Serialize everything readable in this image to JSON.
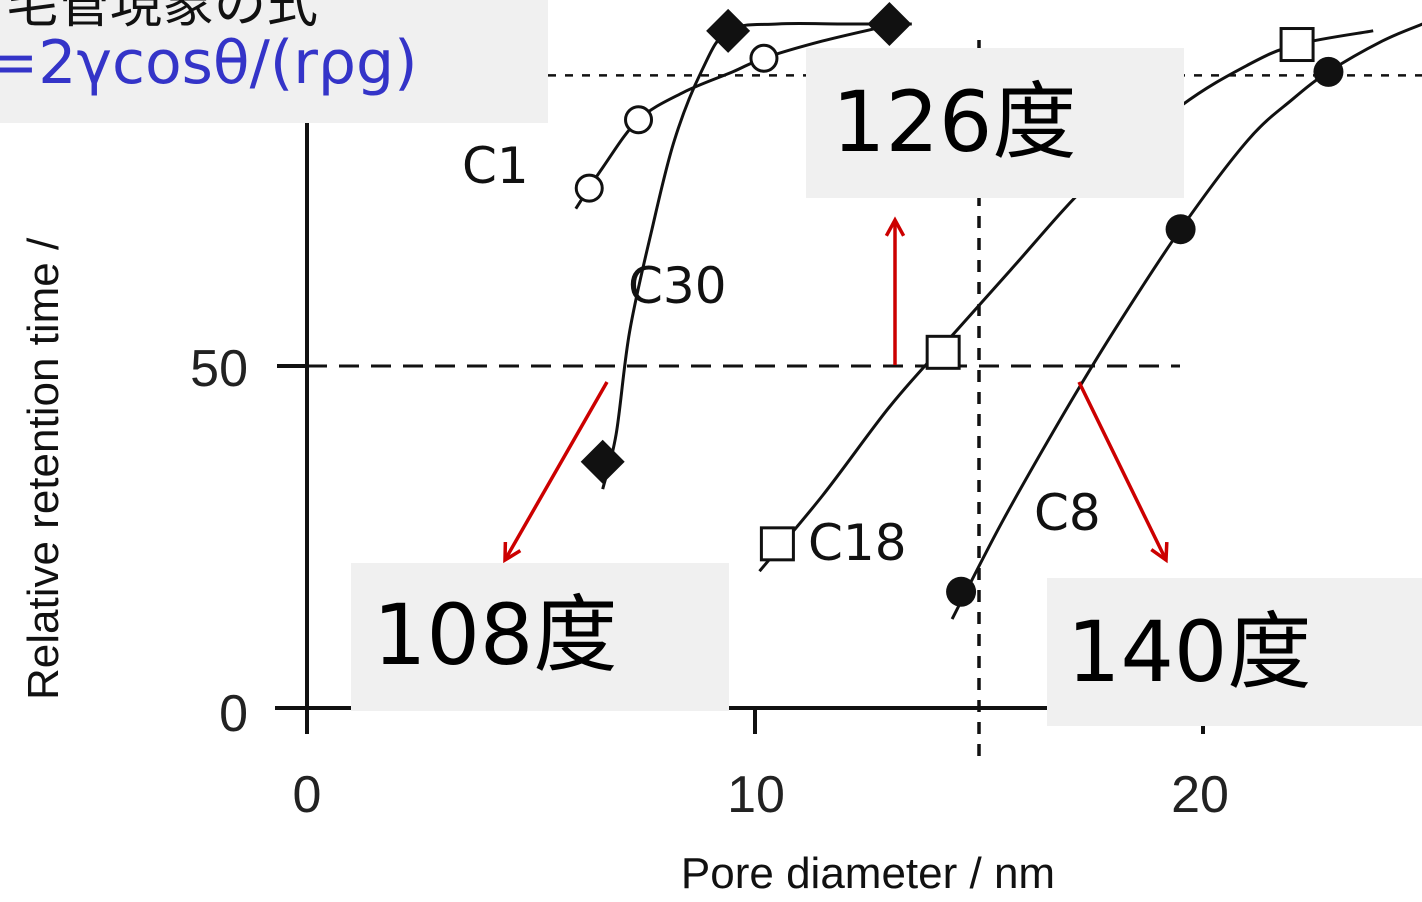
{
  "formula": {
    "top_text": "毛管現象の式",
    "main_text": "=2γcosθ/(rρg)"
  },
  "annotations": {
    "c30_angle": "108度",
    "c18_angle": "126度",
    "c8_angle": "140度"
  },
  "colors": {
    "formula_text": "#3434c8",
    "arrow": "#cc0000",
    "box_fill": "#f0f0f0",
    "axis": "#111111"
  },
  "chart_data": {
    "type": "scatter",
    "xlabel": "Pore diameter / nm",
    "ylabel": "Relative retention time /",
    "x_ticks": [
      "0",
      "10",
      "20"
    ],
    "y_ticks": [
      "0",
      "50"
    ],
    "xlim": [
      0,
      25
    ],
    "ylim": [
      0,
      100
    ],
    "reference_lines": [
      {
        "axis": "y",
        "value": 50,
        "style": "dashed"
      },
      {
        "axis": "y",
        "value": 90,
        "style": "dashed"
      },
      {
        "axis": "x",
        "value": 15,
        "style": "dashed"
      }
    ],
    "series": [
      {
        "name": "C1",
        "marker": "open-circle",
        "points": [
          [
            6.3,
            76
          ],
          [
            7.4,
            86
          ],
          [
            10.2,
            95
          ],
          [
            13.0,
            100
          ]
        ],
        "curve": [
          [
            6.0,
            73
          ],
          [
            6.6,
            79
          ],
          [
            7.4,
            86
          ],
          [
            8.4,
            90
          ],
          [
            9.5,
            93
          ],
          [
            10.2,
            95
          ],
          [
            11.5,
            97.5
          ],
          [
            12.8,
            99.5
          ]
        ]
      },
      {
        "name": "C30",
        "marker": "filled-diamond",
        "points": [
          [
            6.6,
            36
          ],
          [
            9.4,
            99
          ],
          [
            13.0,
            100
          ]
        ],
        "curve": [
          [
            6.6,
            32
          ],
          [
            6.9,
            40
          ],
          [
            7.2,
            55
          ],
          [
            7.7,
            70
          ],
          [
            8.2,
            83
          ],
          [
            8.8,
            93
          ],
          [
            9.4,
            99
          ],
          [
            10.5,
            100
          ],
          [
            12.0,
            100
          ],
          [
            13.5,
            100
          ]
        ]
      },
      {
        "name": "C18",
        "marker": "open-square",
        "points": [
          [
            10.5,
            24
          ],
          [
            14.2,
            52
          ],
          [
            22.1,
            97
          ]
        ],
        "curve": [
          [
            10.1,
            20
          ],
          [
            11.5,
            31
          ],
          [
            13.0,
            44
          ],
          [
            14.2,
            53
          ],
          [
            15.7,
            64
          ],
          [
            17.5,
            77
          ],
          [
            19.5,
            88
          ],
          [
            21.0,
            94
          ],
          [
            22.1,
            97
          ],
          [
            23.8,
            99
          ]
        ]
      },
      {
        "name": "C8",
        "marker": "filled-circle",
        "points": [
          [
            14.6,
            17
          ],
          [
            19.5,
            70
          ],
          [
            22.8,
            93
          ]
        ],
        "curve": [
          [
            14.4,
            13
          ],
          [
            15.5,
            27
          ],
          [
            16.8,
            42
          ],
          [
            18.0,
            55
          ],
          [
            19.5,
            70
          ],
          [
            21.0,
            83
          ],
          [
            22.0,
            89
          ],
          [
            22.8,
            93
          ],
          [
            24.0,
            97.5
          ],
          [
            24.9,
            100
          ]
        ]
      }
    ]
  }
}
